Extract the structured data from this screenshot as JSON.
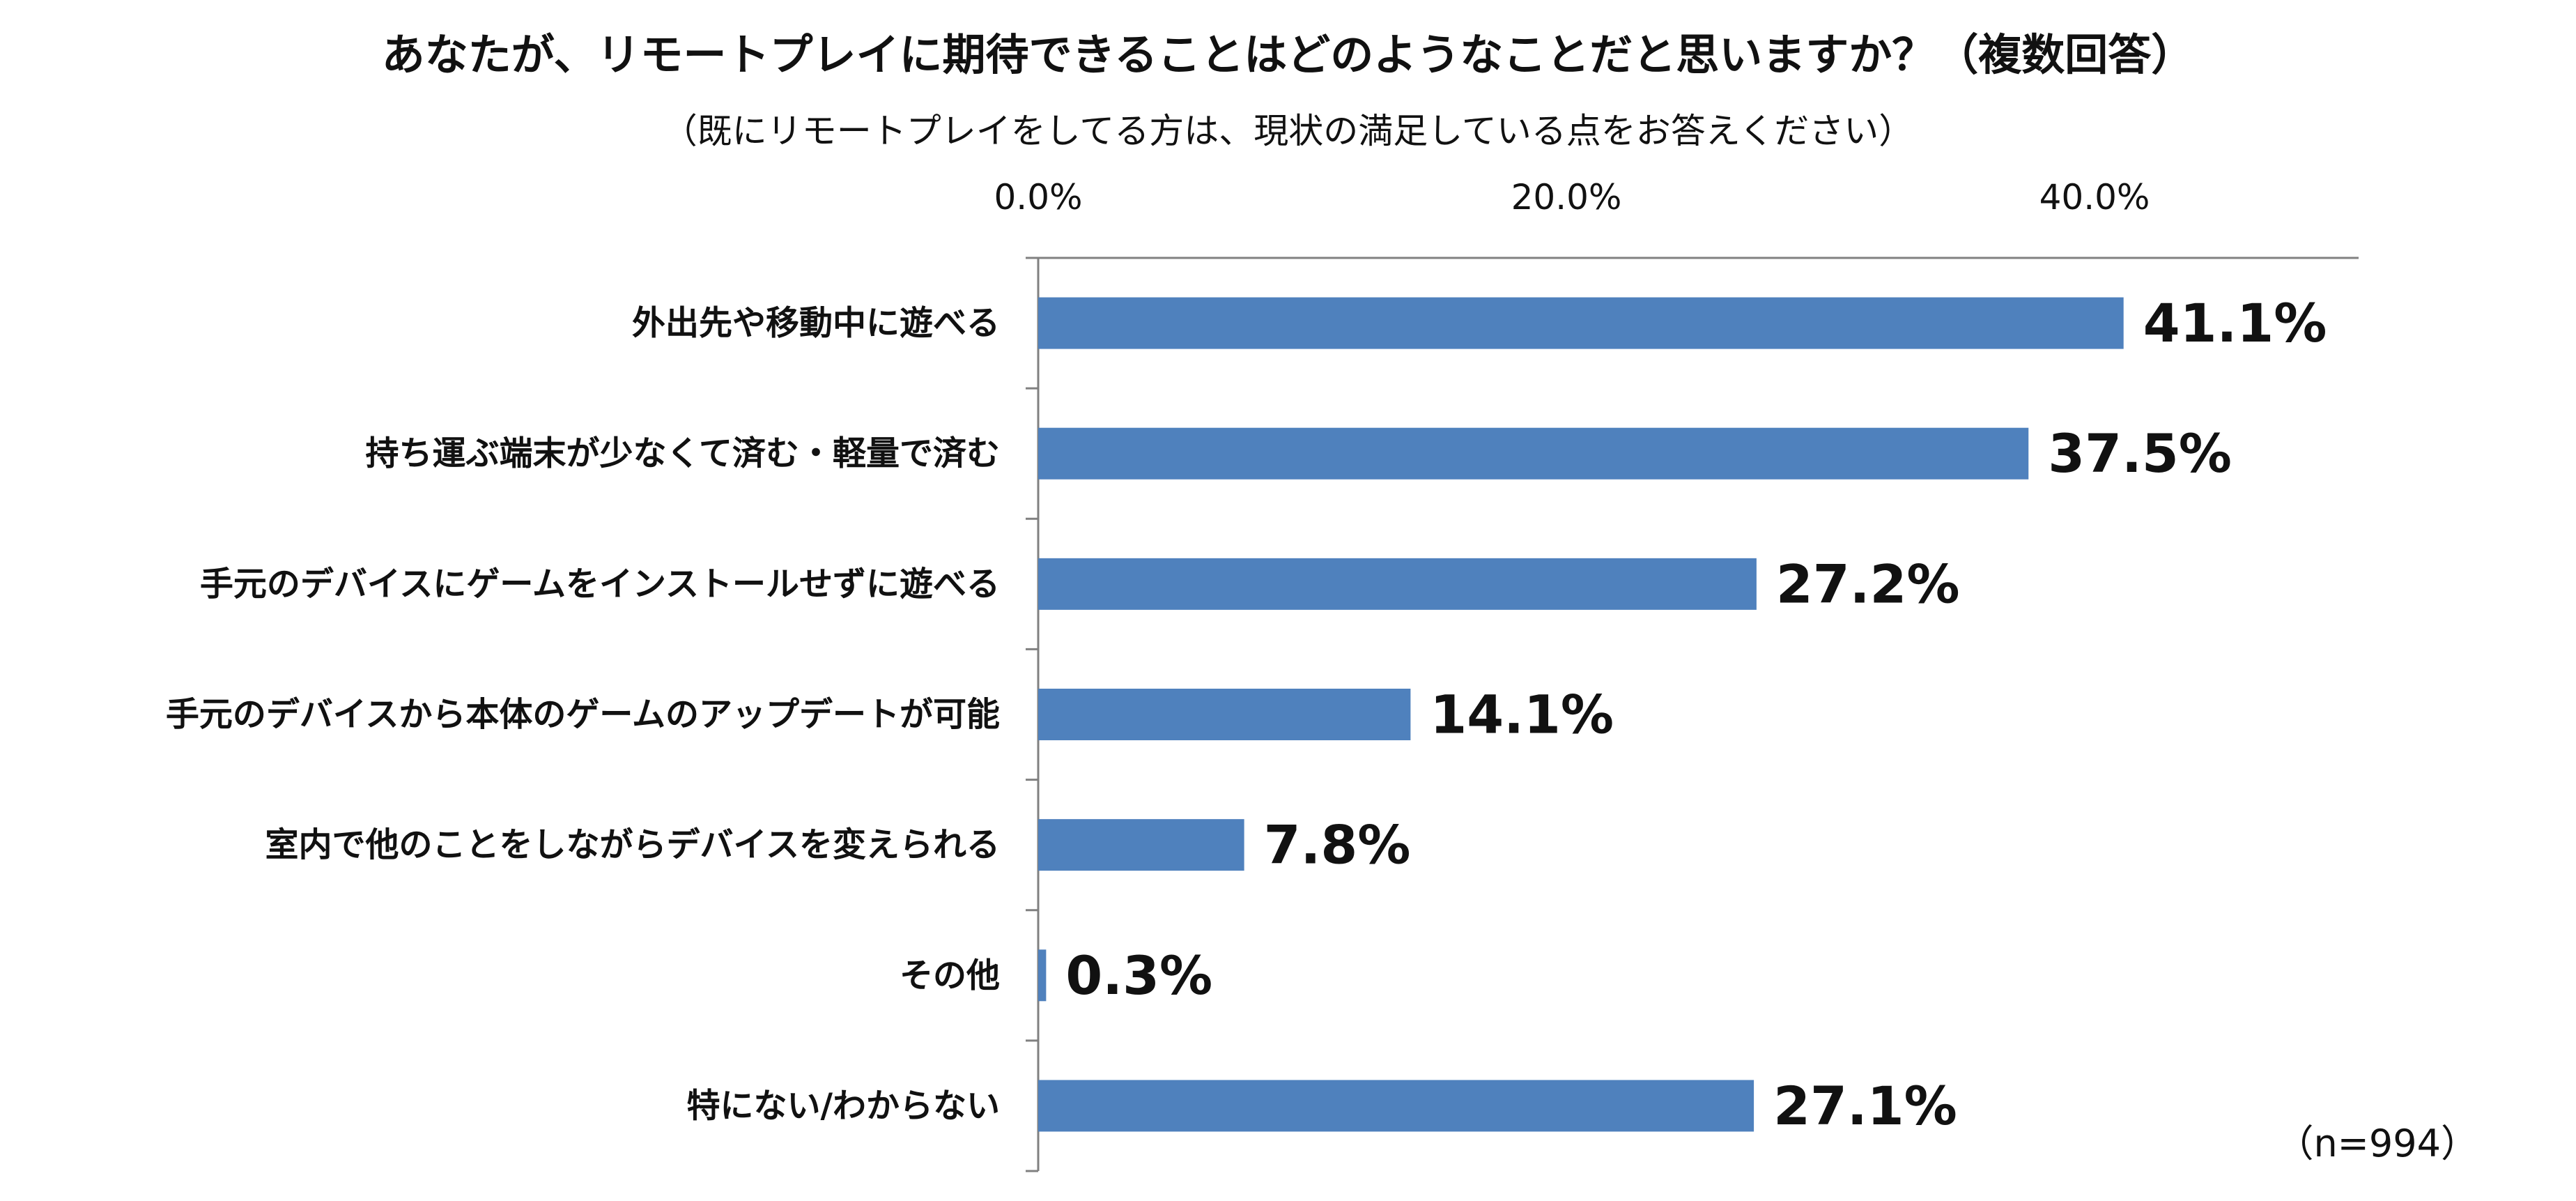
{
  "chart_data": {
    "type": "bar",
    "orientation": "horizontal",
    "title": "あなたが、リモートプレイに期待できることはどのようなことだと思いますか？（複数回答）",
    "subtitle": "（既にリモートプレイをしてる方は、現状の満足している点をお答えください）",
    "note": "（n=994）",
    "categories": [
      "外出先や移動中に遊べる",
      "持ち運ぶ端末が少なくて済む・軽量で済む",
      "手元のデバイスにゲームをインストールせずに遊べる",
      "手元のデバイスから本体のゲームのアップデートが可能",
      "室内で他のことをしながらデバイスを変えられる",
      "その他",
      "特にない/わからない"
    ],
    "values": [
      41.1,
      37.5,
      27.2,
      14.1,
      7.8,
      0.3,
      27.1
    ],
    "value_labels": [
      "41.1%",
      "37.5%",
      "27.2%",
      "14.1%",
      "7.8%",
      "0.3%",
      "27.1%"
    ],
    "x_ticks": [
      0,
      20,
      40
    ],
    "x_tick_labels": [
      "0.0%",
      "20.0%",
      "40.0%"
    ],
    "xlim": [
      0,
      50
    ],
    "axis_position": "top",
    "grid": false,
    "legend": "none",
    "bar_color": "#4f81bd"
  }
}
